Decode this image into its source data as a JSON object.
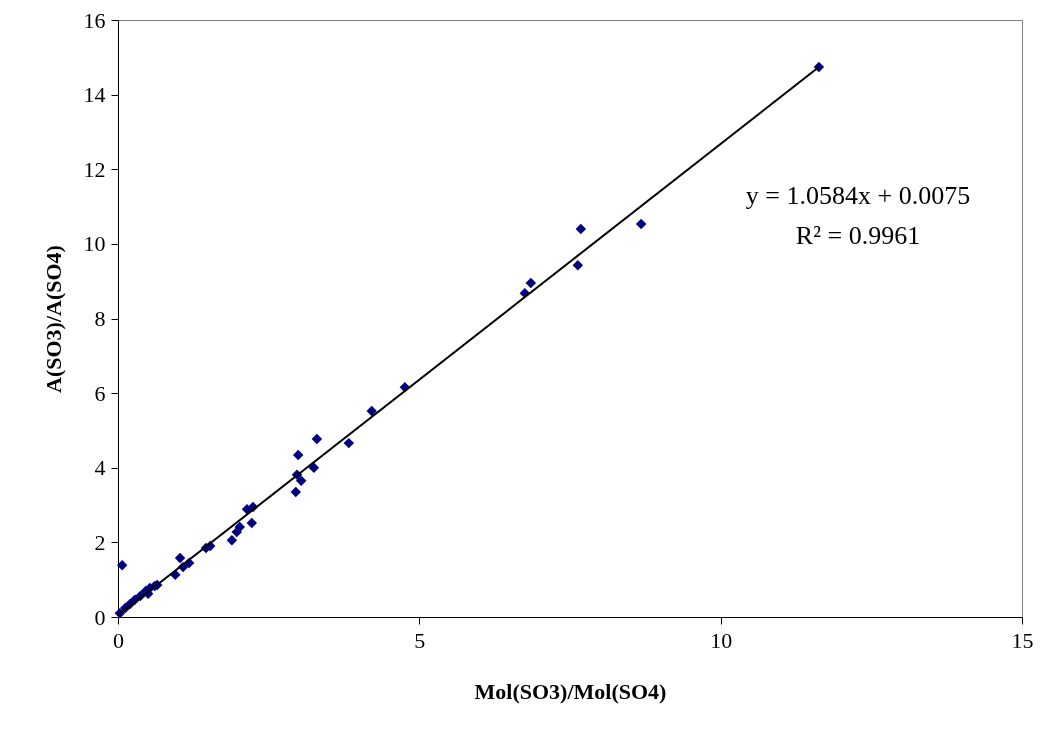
{
  "chart_data": {
    "type": "scatter",
    "xlabel": "Mol(SO3)/Mol(SO4)",
    "ylabel": "A(SO3)/A(SO4)",
    "xlim": [
      0,
      15
    ],
    "xticks": [
      0,
      5,
      10,
      15
    ],
    "ylim": [
      0,
      16
    ],
    "yticks": [
      0,
      2,
      4,
      6,
      8,
      10,
      12,
      14,
      16
    ],
    "grid": false,
    "marker": "diamond",
    "annotations": [
      "y = 1.0584x + 0.0075",
      "R² = 0.9961"
    ],
    "series": [
      {
        "color": "#000080",
        "x": [
          0.03,
          0.07,
          0.12,
          0.2,
          0.28,
          0.37,
          0.46,
          0.5,
          0.53,
          0.61,
          0.65,
          0.95,
          1.03,
          1.08,
          1.18,
          1.46,
          1.53,
          1.89,
          1.97,
          2.02,
          2.14,
          2.22,
          2.24,
          2.95,
          2.99,
          2.97,
          3.04,
          3.25,
          3.3,
          3.83,
          4.21,
          4.76,
          6.75,
          6.85,
          7.63,
          7.68,
          8.68,
          11.63
        ],
        "values": [
          0.1,
          1.39,
          0.24,
          0.35,
          0.46,
          0.56,
          0.7,
          0.62,
          0.78,
          0.83,
          0.86,
          1.13,
          1.58,
          1.34,
          1.45,
          1.85,
          1.9,
          2.06,
          2.28,
          2.41,
          2.89,
          2.52,
          2.95,
          3.35,
          4.34,
          3.81,
          3.65,
          4.0,
          4.77,
          4.66,
          5.52,
          6.16,
          8.68,
          8.95,
          9.43,
          10.4,
          10.53,
          14.74
        ]
      },
      {
        "type": "line",
        "color": "#000000",
        "marker": "none",
        "x": [
          0.03,
          11.63
        ],
        "values": [
          0.08,
          14.74
        ]
      }
    ]
  }
}
